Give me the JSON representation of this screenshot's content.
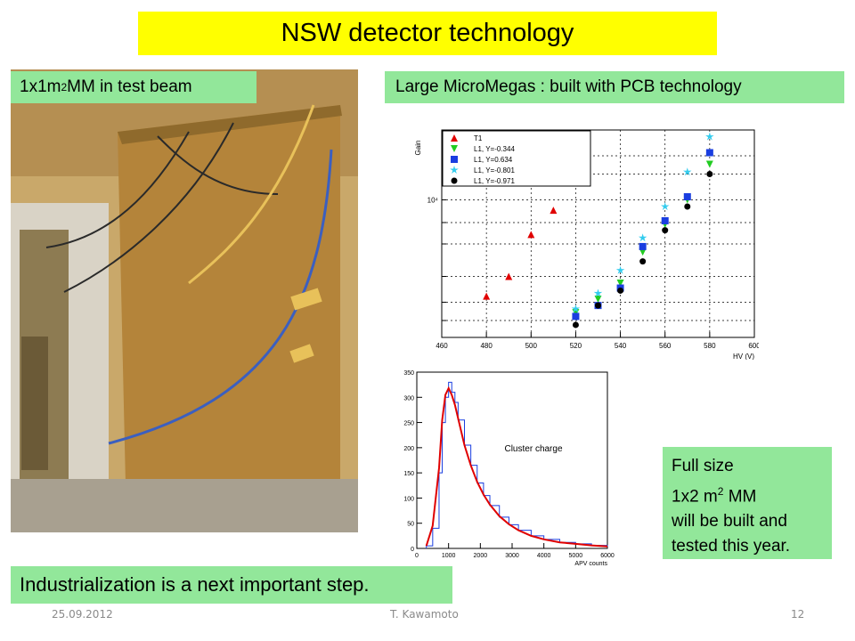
{
  "title": "NSW detector technology",
  "labels": {
    "mm_test_beam": {
      "pre": "1x1m",
      "sup": "2",
      "post": " MM in test beam"
    },
    "large_mm": "Large MicroMegas : built with PCB technology",
    "full_size": {
      "line1": "Full size",
      "line2_pre": "1x2 m",
      "line2_sup": "2",
      "line2_post": " MM",
      "line3": "will be built and",
      "line4": "tested this year."
    },
    "industrialization": "Industrialization is a next important step."
  },
  "footer": {
    "date": "25.09.2012",
    "author": "T. Kawamoto",
    "page": "12"
  },
  "photo": {
    "subject": "MicroMegas detector in test beam",
    "colors": {
      "panel": "#b98a3a",
      "background": "#c9b27a",
      "frame": "#d8d2c8",
      "cable": "#3b5fc0",
      "tape": "#e8c15a"
    }
  },
  "chart_data": [
    {
      "type": "scatter",
      "ylabel": "Gain",
      "xlabel": "HV (V)",
      "xlim": [
        460,
        600
      ],
      "x_ticks": [
        "460",
        "480",
        "500",
        "520",
        "540",
        "560",
        "580",
        "600"
      ],
      "y_scale": "log",
      "y_tick_label": "10⁴",
      "grid": true,
      "legend_placement": "top-left",
      "series": [
        {
          "name": "T1",
          "marker": "triangle-up",
          "color": "#e00000",
          "x": [
            480,
            490,
            500,
            510
          ],
          "y": [
            2200,
            3000,
            5800,
            8500
          ]
        },
        {
          "name": "L1, Y=-0.344",
          "marker": "triangle-down",
          "color": "#22cc22",
          "x": [
            520,
            530,
            540,
            550,
            560,
            570,
            580
          ],
          "y": [
            1700,
            2100,
            2700,
            4400,
            6800,
            10000,
            17500
          ]
        },
        {
          "name": "L1, Y=0.634",
          "marker": "square",
          "color": "#1a3ee0",
          "x": [
            520,
            530,
            540,
            550,
            560,
            570,
            580
          ],
          "y": [
            1600,
            1900,
            2500,
            4800,
            7200,
            10500,
            21000
          ]
        },
        {
          "name": "L1, Y=-0.801",
          "marker": "star",
          "color": "#33ccee",
          "x": [
            520,
            530,
            540,
            550,
            560,
            570,
            580
          ],
          "y": [
            1800,
            2300,
            3300,
            5500,
            9000,
            15500,
            27000
          ]
        },
        {
          "name": "L1, Y=-0.971",
          "marker": "circle",
          "color": "#000000",
          "x": [
            520,
            530,
            540,
            550,
            560,
            570,
            580
          ],
          "y": [
            1400,
            1900,
            2400,
            3800,
            6200,
            9000,
            15000
          ]
        }
      ]
    },
    {
      "type": "histogram",
      "title": "Cluster charge",
      "xlabel": "APV counts",
      "xlim": [
        0,
        6000
      ],
      "ylim": [
        0,
        350
      ],
      "x_ticks": [
        "0",
        "1000",
        "2000",
        "3000",
        "4000",
        "5000",
        "6000"
      ],
      "y_ticks": [
        "0",
        "50",
        "100",
        "150",
        "200",
        "250",
        "300",
        "350"
      ],
      "hist_color": "#1a3ee0",
      "fit_color": "#e00000",
      "bins_x": [
        300,
        500,
        700,
        800,
        900,
        1000,
        1100,
        1200,
        1300,
        1500,
        1700,
        1900,
        2100,
        2300,
        2600,
        2900,
        3200,
        3600,
        4000,
        4500,
        5000,
        5500,
        6000
      ],
      "bins_y": [
        5,
        40,
        150,
        250,
        300,
        330,
        310,
        290,
        255,
        205,
        165,
        130,
        105,
        85,
        62,
        47,
        36,
        25,
        18,
        12,
        9,
        6,
        4
      ],
      "fit_x": [
        300,
        500,
        700,
        800,
        900,
        1000,
        1100,
        1200,
        1300,
        1500,
        1700,
        1900,
        2100,
        2300,
        2600,
        2900,
        3200,
        3600,
        4000,
        4500,
        5000,
        5500,
        6000
      ],
      "fit_y": [
        5,
        45,
        160,
        255,
        305,
        318,
        305,
        285,
        258,
        205,
        165,
        132,
        107,
        87,
        64,
        48,
        36,
        25,
        18,
        12,
        9,
        6,
        4
      ]
    }
  ]
}
